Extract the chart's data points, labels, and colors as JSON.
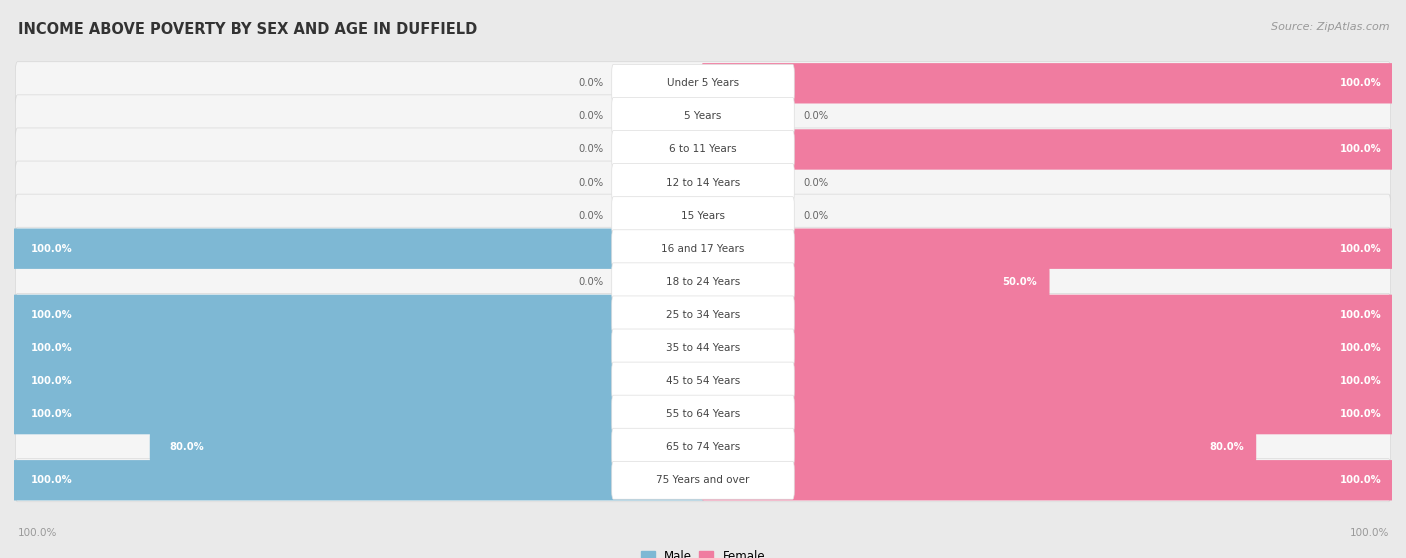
{
  "title": "INCOME ABOVE POVERTY BY SEX AND AGE IN DUFFIELD",
  "source": "Source: ZipAtlas.com",
  "categories": [
    "Under 5 Years",
    "5 Years",
    "6 to 11 Years",
    "12 to 14 Years",
    "15 Years",
    "16 and 17 Years",
    "18 to 24 Years",
    "25 to 34 Years",
    "35 to 44 Years",
    "45 to 54 Years",
    "55 to 64 Years",
    "65 to 74 Years",
    "75 Years and over"
  ],
  "male_values": [
    0.0,
    0.0,
    0.0,
    0.0,
    0.0,
    100.0,
    0.0,
    100.0,
    100.0,
    100.0,
    100.0,
    80.0,
    100.0
  ],
  "female_values": [
    100.0,
    0.0,
    100.0,
    0.0,
    0.0,
    100.0,
    50.0,
    100.0,
    100.0,
    100.0,
    100.0,
    80.0,
    100.0
  ],
  "male_color": "#7eb8d4",
  "female_color": "#f07ca0",
  "female_color_light": "#f5a8c0",
  "bg_color": "#eaeaea",
  "bar_bg_color": "#f5f5f5",
  "bar_border_color": "#d0d0d0",
  "title_color": "#333333",
  "source_color": "#999999",
  "label_white": "#ffffff",
  "label_dark": "#666666",
  "axis_label_color": "#999999",
  "center_label_bg": "#ffffff",
  "center_label_color": "#444444"
}
